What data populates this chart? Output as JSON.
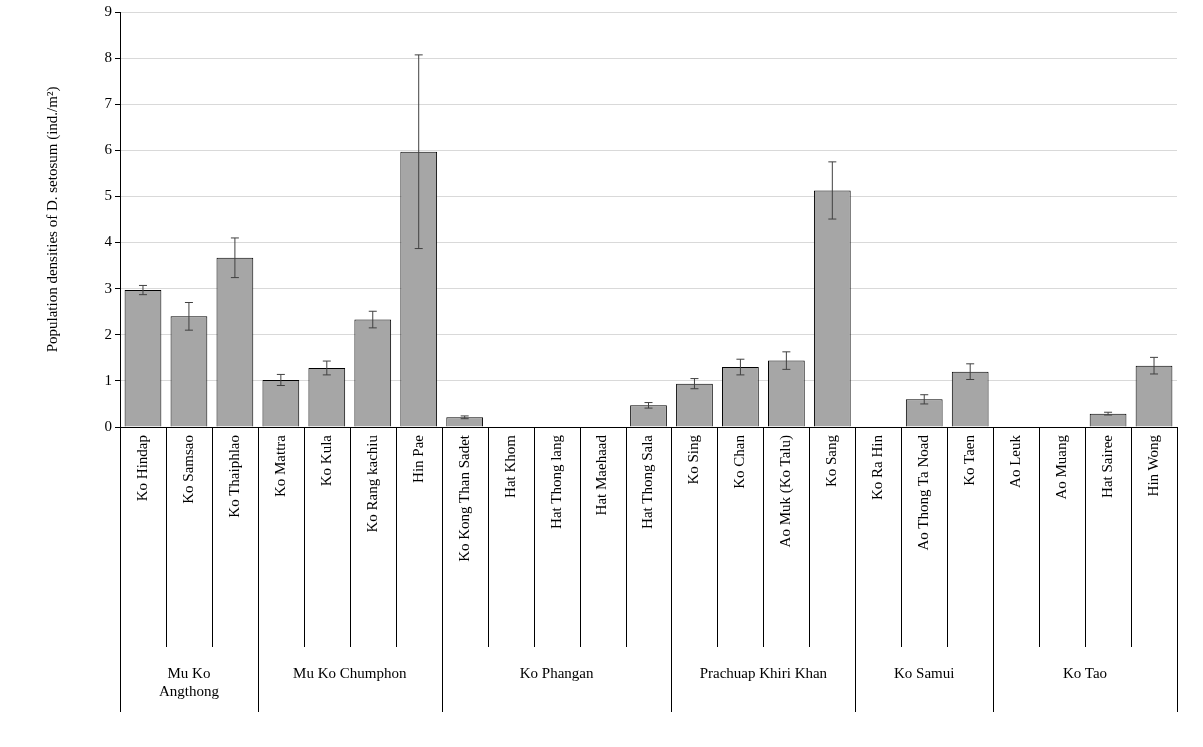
{
  "chart_data": {
    "type": "bar",
    "ylabel": "Population densities of D. setosum (ind./m²)",
    "categories": [
      "Ko Hindap",
      "Ko Samsao",
      "Ko Thaiphlao",
      "Ko Mattra",
      "Ko Kula",
      "Ko Rang kachiu",
      "Hin Pae",
      "Ko Kong Than Sadet",
      "Hat Khom",
      "Hat Thong lang",
      "Hat Maehaad",
      "Hat Thong Sala",
      "Ko Sing",
      "Ko Chan",
      "Ao Muk (Ko Talu)",
      "Ko Sang",
      "Ko Ra Hin",
      "Ao Thong Ta Noad",
      "Ko Taen",
      "Ao Leuk",
      "Ao Muang",
      "Hat Sairee",
      "Hin Wong"
    ],
    "values": [
      2.97,
      2.4,
      3.67,
      1.02,
      1.28,
      2.33,
      5.97,
      0.21,
      0,
      0,
      0,
      0.47,
      0.94,
      1.3,
      1.44,
      5.13,
      0,
      0.6,
      1.2,
      0,
      0,
      0.29,
      1.33
    ],
    "errors": [
      0.1,
      0.3,
      0.43,
      0.12,
      0.15,
      0.18,
      2.1,
      0.03,
      null,
      null,
      null,
      0.06,
      0.11,
      0.17,
      0.19,
      0.62,
      null,
      0.1,
      0.17,
      null,
      null,
      0.03,
      0.18
    ],
    "color": "#a6a6a6",
    "ylim": [
      0,
      9
    ],
    "yticks": [
      0,
      1,
      2,
      3,
      4,
      5,
      6,
      7,
      8,
      9
    ],
    "grid": "y",
    "annotations": [
      "Mu Ko Angthong",
      "Mu Ko Chumphon",
      "Ko Phangan",
      "Prachuap Khiri Khan",
      "Ko Samui",
      "Ko Tao"
    ]
  }
}
